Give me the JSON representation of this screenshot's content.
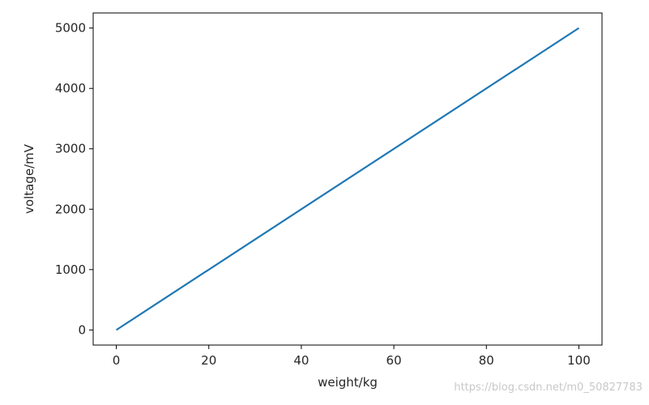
{
  "chart_data": {
    "type": "line",
    "title": "",
    "xlabel": "weight/kg",
    "ylabel": "voltage/mV",
    "xlim": [
      -5,
      105
    ],
    "ylim": [
      -250,
      5250
    ],
    "xticks": [
      0,
      20,
      40,
      60,
      80,
      100
    ],
    "yticks": [
      0,
      1000,
      2000,
      3000,
      4000,
      5000
    ],
    "grid": false,
    "series": [
      {
        "color": "#1f77b4",
        "x": [
          0,
          100
        ],
        "y": [
          0,
          5000
        ]
      }
    ]
  },
  "watermark": "https://blog.csdn.net/m0_50827783"
}
